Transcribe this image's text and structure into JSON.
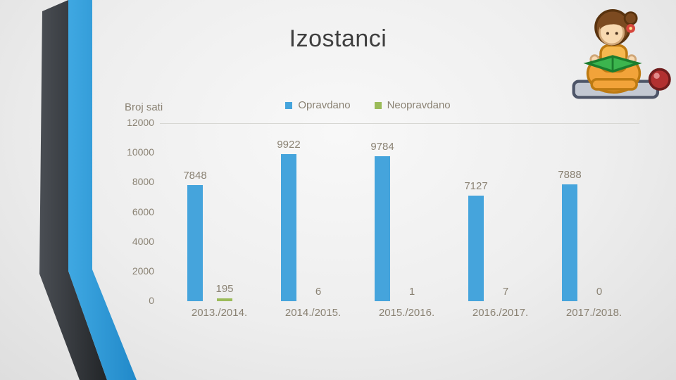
{
  "slide": {
    "title": "Izostanci"
  },
  "chart": {
    "axis_title": "Broj sati"
  },
  "chart_data": {
    "type": "bar",
    "title": "Izostanci",
    "categories": [
      "2013./2014.",
      "2014./2015.",
      "2015./2016.",
      "2016./2017.",
      "2017./2018."
    ],
    "series": [
      {
        "name": "Opravdano",
        "color": "#45a4dc",
        "values": [
          7848,
          9922,
          9784,
          7127,
          7888
        ]
      },
      {
        "name": "Neopravdano",
        "color": "#9bbb59",
        "values": [
          195,
          6,
          1,
          7,
          0
        ]
      }
    ],
    "xlabel": "",
    "ylabel": "Broj sati",
    "ylim": [
      0,
      12000
    ],
    "yticks": [
      "12000",
      "10000",
      "8000",
      "6000",
      "4000",
      "2000",
      "0"
    ],
    "grid": "top gridline only",
    "legend_position": "top-center"
  },
  "decorations": {
    "frame_dark_color": "#33373c",
    "frame_blue_color": "#2f9bd8",
    "character": "pixel-art girl reading green book"
  }
}
